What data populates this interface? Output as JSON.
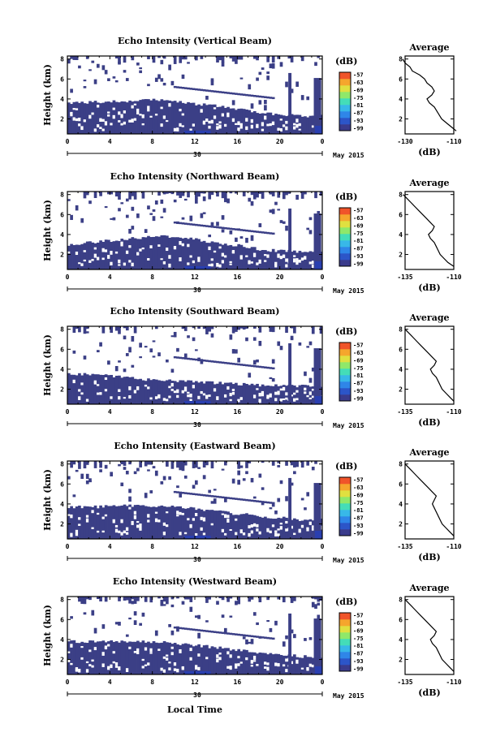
{
  "colors": {
    "fill_dark": "#3b3f86",
    "fill_blue": "#2a3fb0",
    "colorbar": [
      "#3a3b8c",
      "#2c55c8",
      "#2f86e8",
      "#38b8e8",
      "#44ddb8",
      "#8fe86a",
      "#e0e040",
      "#f5a62d",
      "#f0542a"
    ]
  },
  "date_label": "May 2015",
  "xaxis_title": "Local Time",
  "cb_unit": "(dB)",
  "avg_title": "Average",
  "avg_xlabel": "(dB)",
  "chart_data": [
    {
      "type": "heatmap",
      "title": "Echo Intensity (Vertical Beam)",
      "ylabel": "Height (km)",
      "x_ticks": [
        "0",
        "4",
        "8",
        "12",
        "16",
        "20",
        "0"
      ],
      "x_day_label": "30",
      "y_ticks": [
        "2",
        "4",
        "6",
        "8"
      ],
      "xlim": [
        0,
        24
      ],
      "ylim": [
        0.5,
        8.3
      ],
      "colorbar_ticks": [
        "-57",
        "-63",
        "-69",
        "-75",
        "-81",
        "-87",
        "-93",
        "-99"
      ],
      "colorbar_unit": "(dB)",
      "mixed_layer_top_km": [
        3.6,
        3.6,
        3.7,
        3.7,
        3.7,
        3.8,
        3.8,
        3.9,
        3.9,
        3.8,
        3.7,
        3.6,
        3.5,
        3.4,
        3.3,
        3.2,
        3.0,
        2.8,
        2.6,
        2.5,
        2.4,
        2.4,
        2.3,
        2.3,
        2.3
      ],
      "sparse_echo_top_km": 8.0,
      "average_profile": {
        "xlim": [
          -130,
          -110
        ],
        "x_ticks": [
          "-130",
          "-110"
        ],
        "y_ticks": [
          "2",
          "4",
          "6",
          "8"
        ],
        "height_km": [
          8.0,
          7.6,
          7.2,
          6.8,
          6.4,
          6.0,
          5.6,
          5.2,
          4.8,
          4.4,
          4.0,
          3.6,
          3.2,
          2.8,
          2.4,
          2.0,
          1.6,
          1.2,
          0.8
        ],
        "db": [
          -131,
          -130,
          -128,
          -127,
          -124,
          -122,
          -121,
          -119,
          -118,
          -119,
          -121,
          -120,
          -118,
          -117,
          -116,
          -115,
          -113,
          -111,
          -109
        ]
      }
    },
    {
      "type": "heatmap",
      "title": "Echo Intensity (Northward Beam)",
      "ylabel": "Height (km)",
      "x_ticks": [
        "0",
        "4",
        "8",
        "12",
        "16",
        "20",
        "0"
      ],
      "x_day_label": "30",
      "y_ticks": [
        "2",
        "4",
        "6",
        "8"
      ],
      "xlim": [
        0,
        24
      ],
      "ylim": [
        0.5,
        8.3
      ],
      "colorbar_ticks": [
        "-57",
        "-63",
        "-69",
        "-75",
        "-81",
        "-87",
        "-93",
        "-99"
      ],
      "colorbar_unit": "(dB)",
      "mixed_layer_top_km": [
        3.0,
        3.1,
        3.2,
        3.3,
        3.4,
        3.5,
        3.6,
        3.7,
        3.8,
        3.8,
        3.7,
        3.6,
        3.5,
        3.3,
        3.2,
        3.0,
        2.9,
        2.7,
        2.5,
        2.4,
        2.4,
        2.3,
        2.3,
        2.3,
        2.3
      ],
      "sparse_echo_top_km": 8.0,
      "average_profile": {
        "xlim": [
          -135,
          -110
        ],
        "x_ticks": [
          "-135",
          "-110"
        ],
        "y_ticks": [
          "2",
          "4",
          "6",
          "8"
        ],
        "height_km": [
          8.0,
          7.6,
          7.2,
          6.8,
          6.4,
          6.0,
          5.6,
          5.2,
          4.8,
          4.4,
          4.0,
          3.6,
          3.2,
          2.8,
          2.4,
          2.0,
          1.6,
          1.2,
          0.8
        ],
        "db": [
          -136,
          -134,
          -132,
          -130,
          -128,
          -126,
          -124,
          -122,
          -120,
          -121,
          -123,
          -122,
          -120,
          -119,
          -118,
          -117,
          -115,
          -113,
          -110
        ]
      }
    },
    {
      "type": "heatmap",
      "title": "Echo Intensity (Southward Beam)",
      "ylabel": "Height (km)",
      "x_ticks": [
        "0",
        "4",
        "8",
        "12",
        "16",
        "20",
        "0"
      ],
      "x_day_label": "30",
      "y_ticks": [
        "2",
        "4",
        "6",
        "8"
      ],
      "xlim": [
        0,
        24
      ],
      "ylim": [
        0.5,
        8.3
      ],
      "colorbar_ticks": [
        "-57",
        "-63",
        "-69",
        "-75",
        "-81",
        "-87",
        "-93",
        "-99"
      ],
      "colorbar_unit": "(dB)",
      "mixed_layer_top_km": [
        3.5,
        3.5,
        3.5,
        3.4,
        3.3,
        3.2,
        3.1,
        3.0,
        2.9,
        2.9,
        2.8,
        2.8,
        2.7,
        2.7,
        2.6,
        2.6,
        2.5,
        2.5,
        2.4,
        2.4,
        2.4,
        2.3,
        2.3,
        2.3,
        2.3
      ],
      "sparse_echo_top_km": 8.0,
      "average_profile": {
        "xlim": [
          -135,
          -110
        ],
        "x_ticks": [
          "-135",
          "-110"
        ],
        "y_ticks": [
          "2",
          "4",
          "6",
          "8"
        ],
        "height_km": [
          8.0,
          7.6,
          7.2,
          6.8,
          6.4,
          6.0,
          5.6,
          5.2,
          4.8,
          4.4,
          4.0,
          3.6,
          3.2,
          2.8,
          2.4,
          2.0,
          1.6,
          1.2,
          0.8
        ],
        "db": [
          -135,
          -133,
          -131,
          -129,
          -127,
          -125,
          -123,
          -121,
          -119,
          -120,
          -122,
          -121,
          -119,
          -118,
          -117,
          -116,
          -114,
          -112,
          -110
        ]
      }
    },
    {
      "type": "heatmap",
      "title": "Echo Intensity (Eastward Beam)",
      "ylabel": "Height (km)",
      "x_ticks": [
        "0",
        "4",
        "8",
        "12",
        "16",
        "20",
        "0"
      ],
      "x_day_label": "30",
      "y_ticks": [
        "2",
        "4",
        "6",
        "8"
      ],
      "xlim": [
        0,
        24
      ],
      "ylim": [
        0.5,
        8.3
      ],
      "colorbar_ticks": [
        "-57",
        "-63",
        "-69",
        "-75",
        "-81",
        "-87",
        "-93",
        "-99"
      ],
      "colorbar_unit": "(dB)",
      "mixed_layer_top_km": [
        3.7,
        3.7,
        3.7,
        3.7,
        3.8,
        3.8,
        3.8,
        3.8,
        3.8,
        3.8,
        3.7,
        3.6,
        3.5,
        3.4,
        3.3,
        3.1,
        3.0,
        2.9,
        2.8,
        2.7,
        2.6,
        2.5,
        2.4,
        2.4,
        2.4
      ],
      "sparse_echo_top_km": 8.0,
      "average_profile": {
        "xlim": [
          -135,
          -110
        ],
        "x_ticks": [
          "-135",
          "-110"
        ],
        "y_ticks": [
          "2",
          "4",
          "6",
          "8"
        ],
        "height_km": [
          8.0,
          7.6,
          7.2,
          6.8,
          6.4,
          6.0,
          5.6,
          5.2,
          4.8,
          4.4,
          4.0,
          3.6,
          3.2,
          2.8,
          2.4,
          2.0,
          1.6,
          1.2,
          0.8
        ],
        "db": [
          -135,
          -133,
          -131,
          -129,
          -127,
          -125,
          -123,
          -121,
          -119,
          -120,
          -121,
          -120,
          -119,
          -118,
          -117,
          -116,
          -114,
          -112,
          -110
        ]
      }
    },
    {
      "type": "heatmap",
      "title": "Echo Intensity (Westward Beam)",
      "ylabel": "Height (km)",
      "x_ticks": [
        "0",
        "4",
        "8",
        "12",
        "16",
        "20",
        "0"
      ],
      "x_day_label": "30",
      "y_ticks": [
        "2",
        "4",
        "6",
        "8"
      ],
      "xlim": [
        0,
        24
      ],
      "ylim": [
        0.5,
        8.3
      ],
      "colorbar_ticks": [
        "-57",
        "-63",
        "-69",
        "-75",
        "-81",
        "-87",
        "-93",
        "-99"
      ],
      "colorbar_unit": "(dB)",
      "mixed_layer_top_km": [
        3.8,
        3.8,
        3.8,
        3.8,
        3.8,
        3.8,
        3.8,
        3.8,
        3.7,
        3.7,
        3.6,
        3.5,
        3.4,
        3.3,
        3.2,
        3.0,
        2.9,
        2.8,
        2.6,
        2.5,
        2.4,
        2.4,
        2.3,
        2.3,
        2.3
      ],
      "sparse_echo_top_km": 8.0,
      "average_profile": {
        "xlim": [
          -135,
          -110
        ],
        "x_ticks": [
          "-135",
          "-110"
        ],
        "y_ticks": [
          "2",
          "4",
          "6",
          "8"
        ],
        "height_km": [
          8.0,
          7.6,
          7.2,
          6.8,
          6.4,
          6.0,
          5.6,
          5.2,
          4.8,
          4.4,
          4.0,
          3.6,
          3.2,
          2.8,
          2.4,
          2.0,
          1.6,
          1.2,
          0.8
        ],
        "db": [
          -135,
          -133,
          -131,
          -129,
          -127,
          -125,
          -123,
          -121,
          -119,
          -120,
          -122,
          -121,
          -119,
          -118,
          -117,
          -116,
          -114,
          -112,
          -110
        ]
      }
    }
  ]
}
